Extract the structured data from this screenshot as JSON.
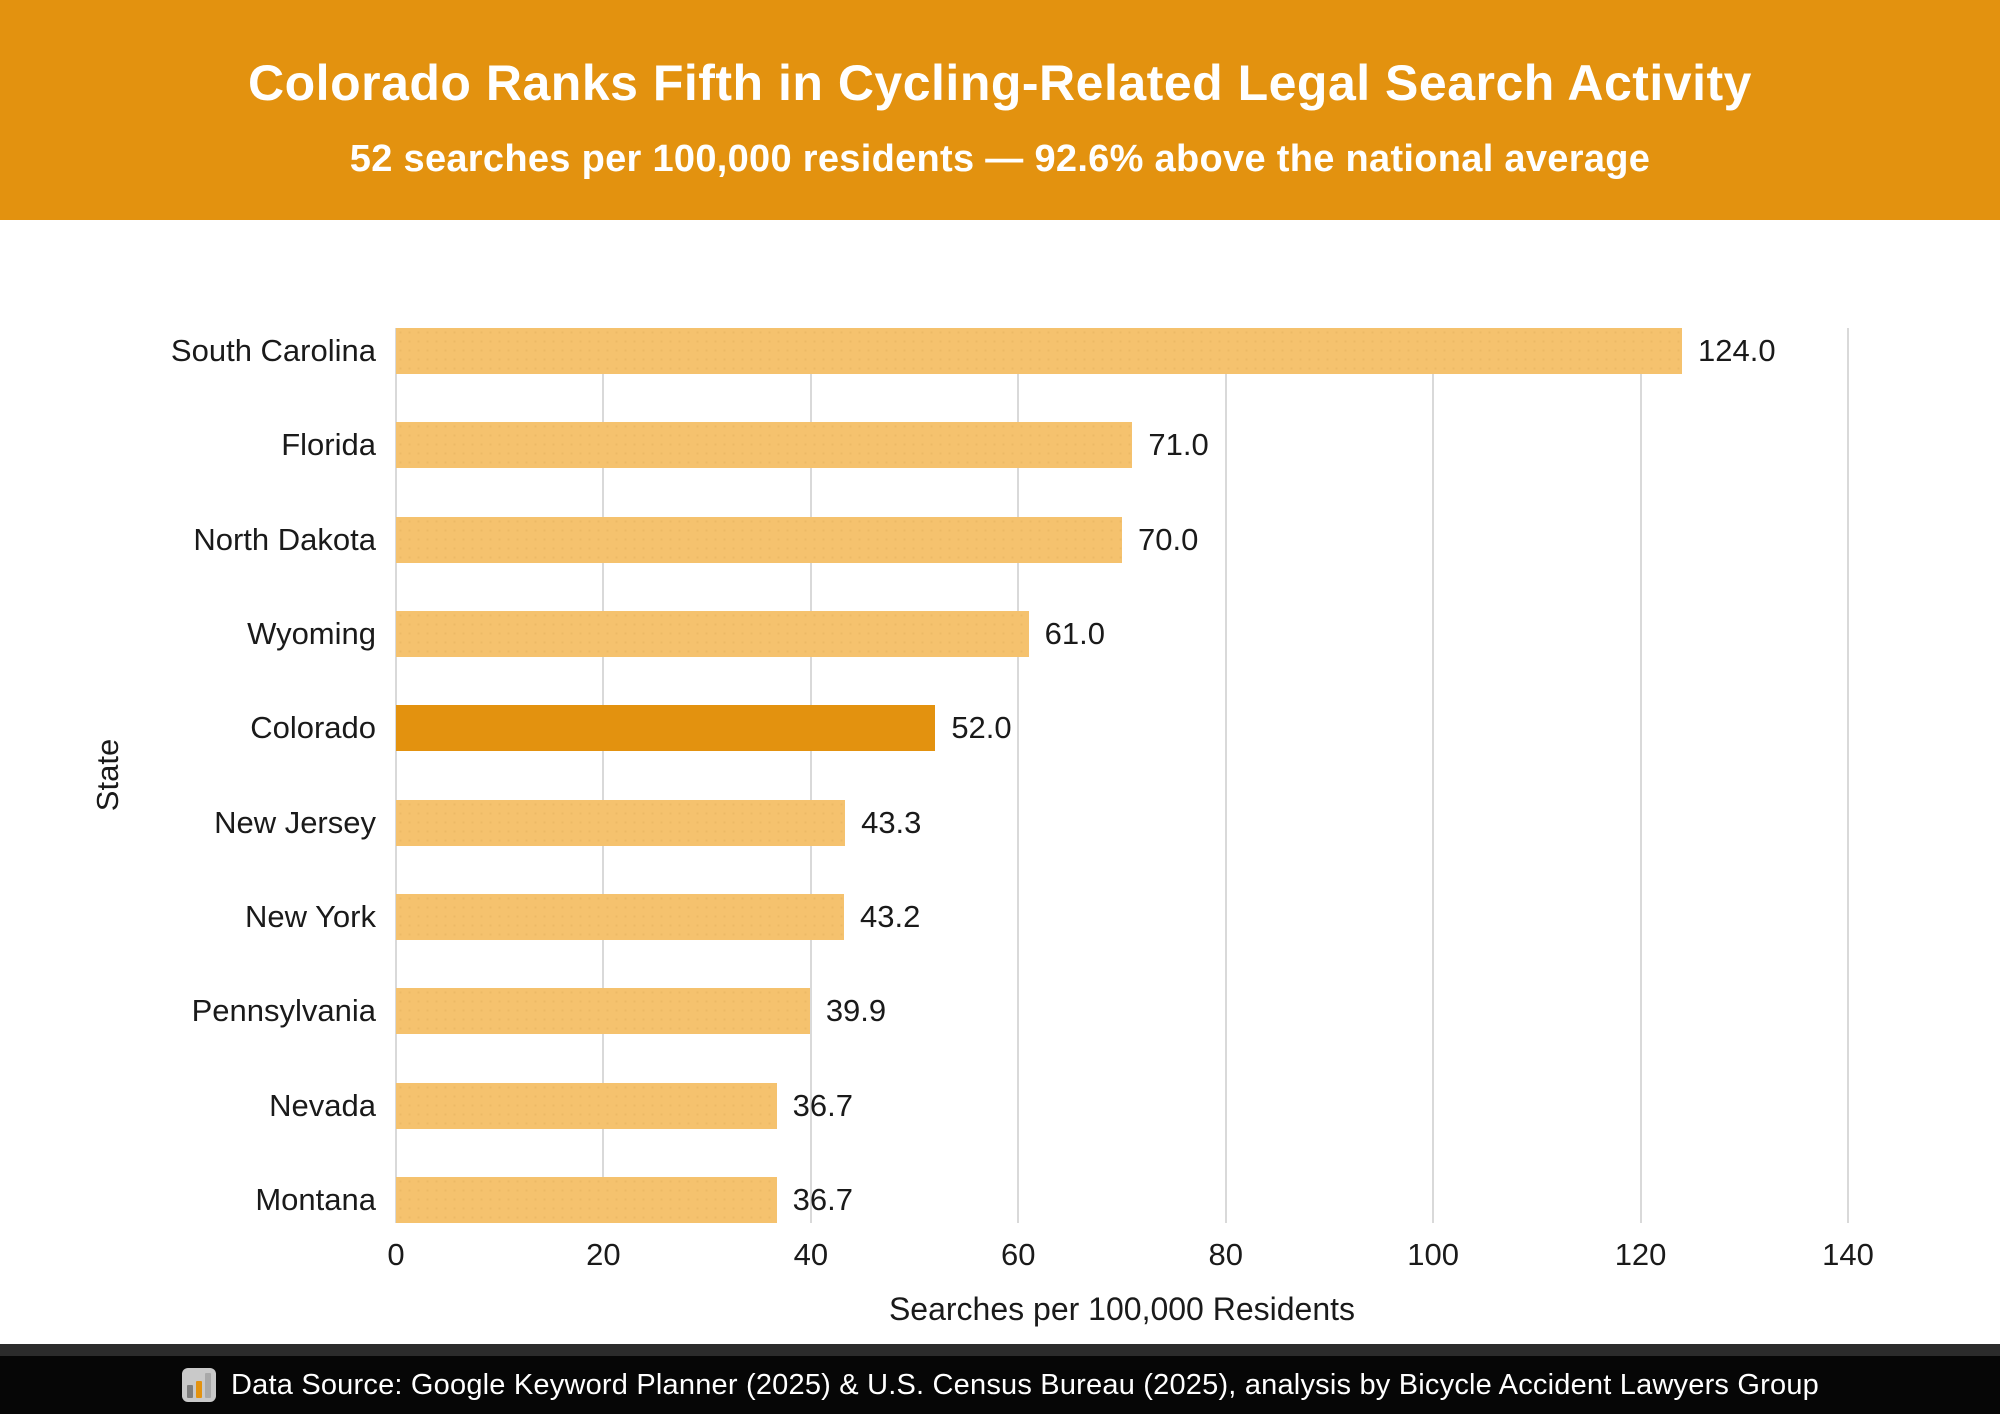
{
  "header": {
    "title": "Colorado Ranks Fifth in Cycling-Related Legal Search Activity",
    "subtitle": "52 searches per 100,000 residents — 92.6% above the national average",
    "bg_color": "#E3920F",
    "text_color": "#FFFFFF"
  },
  "chart_data": {
    "type": "bar",
    "orientation": "horizontal",
    "title": "Colorado Ranks Fifth in Cycling-Related Legal Search Activity",
    "subtitle": "52 searches per 100,000 residents — 92.6% above the national average",
    "categories": [
      "South Carolina",
      "Florida",
      "North Dakota",
      "Wyoming",
      "Colorado",
      "New Jersey",
      "New York",
      "Pennsylvania",
      "Nevada",
      "Montana"
    ],
    "values": [
      124.0,
      71.0,
      70.0,
      61.0,
      52.0,
      43.3,
      43.2,
      39.9,
      36.7,
      36.7
    ],
    "value_labels": [
      "124.0",
      "71.0",
      "70.0",
      "61.0",
      "52.0",
      "43.3",
      "43.2",
      "39.9",
      "36.7",
      "36.7"
    ],
    "highlight_index": 4,
    "highlight_category": "Colorado",
    "bar_color": "#F5C26E",
    "highlight_color": "#E3920F",
    "xlabel": "Searches per 100,000 Residents",
    "ylabel": "State",
    "xlim": [
      0,
      140
    ],
    "xticks": [
      0,
      20,
      40,
      60,
      80,
      100,
      120,
      140
    ],
    "xtick_labels": [
      "0",
      "20",
      "40",
      "60",
      "80",
      "100",
      "120",
      "140"
    ],
    "grid": true,
    "gridline_color": "#D9D9D9",
    "legend": false
  },
  "footer": {
    "icon_name": "bar-chart-icon",
    "text": "Data Source: Google Keyword Planner (2025) & U.S. Census Bureau (2025), analysis by Bicycle Accident Lawyers Group",
    "bg_color": "#060606",
    "text_color": "#FFFFFF"
  }
}
